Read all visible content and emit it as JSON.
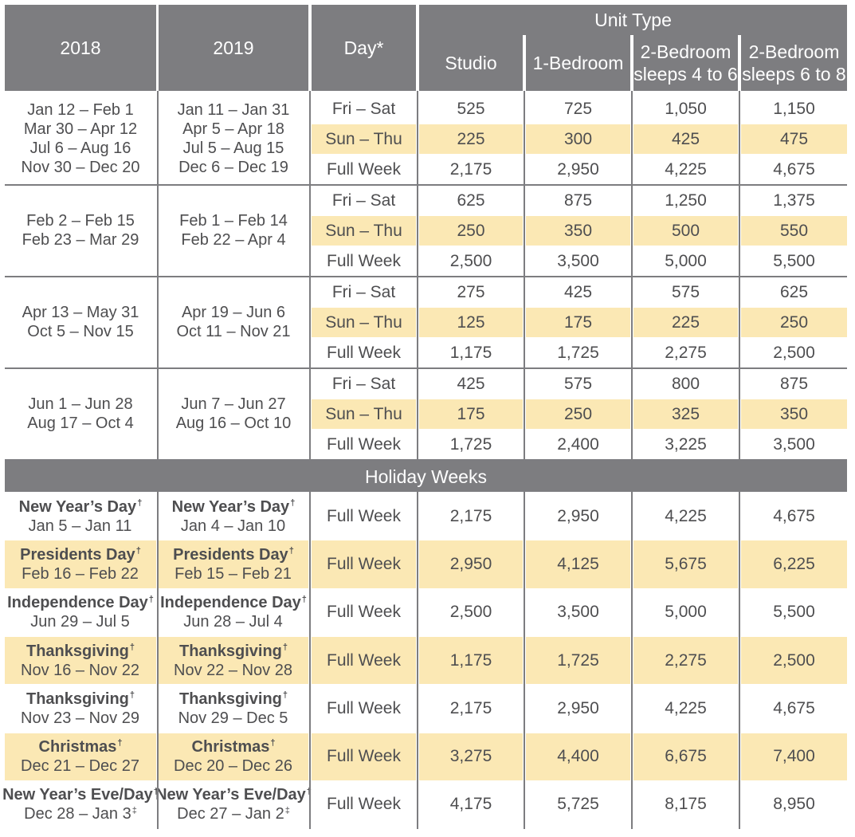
{
  "header": {
    "col_2018": "2018",
    "col_2019": "2019",
    "col_day": "Day*",
    "unit_type": "Unit Type",
    "studio": "Studio",
    "one_bedroom": "1-Bedroom",
    "two_bed_a_line1": "2-Bedroom",
    "two_bed_a_line2": "sleeps 4 to 6",
    "two_bed_b_line1": "2-Bedroom",
    "two_bed_b_line2": "sleeps 6 to 8"
  },
  "seasons": [
    {
      "dates_2018": [
        "Jan 12 – Feb 1",
        "Mar 30 – Apr 12",
        "Jul 6 – Aug 16",
        "Nov 30 – Dec 20"
      ],
      "dates_2019": [
        "Jan 11 – Jan 31",
        "Apr 5 – Apr 18",
        "Jul 5 – Aug 15",
        "Dec 6 – Dec 19"
      ],
      "rows": [
        {
          "day": "Fri – Sat",
          "values": [
            "525",
            "725",
            "1,050",
            "1,150"
          ]
        },
        {
          "day": "Sun – Thu",
          "values": [
            "225",
            "300",
            "425",
            "475"
          ]
        },
        {
          "day": "Full Week",
          "values": [
            "2,175",
            "2,950",
            "4,225",
            "4,675"
          ]
        }
      ]
    },
    {
      "dates_2018": [
        "Feb 2 – Feb 15",
        "Feb 23 – Mar 29"
      ],
      "dates_2019": [
        "Feb 1 – Feb 14",
        "Feb 22 – Apr 4"
      ],
      "rows": [
        {
          "day": "Fri – Sat",
          "values": [
            "625",
            "875",
            "1,250",
            "1,375"
          ]
        },
        {
          "day": "Sun – Thu",
          "values": [
            "250",
            "350",
            "500",
            "550"
          ]
        },
        {
          "day": "Full Week",
          "values": [
            "2,500",
            "3,500",
            "5,000",
            "5,500"
          ]
        }
      ]
    },
    {
      "dates_2018": [
        "Apr 13 – May 31",
        "Oct 5 – Nov 15"
      ],
      "dates_2019": [
        "Apr 19 – Jun 6",
        "Oct 11 – Nov 21"
      ],
      "rows": [
        {
          "day": "Fri – Sat",
          "values": [
            "275",
            "425",
            "575",
            "625"
          ]
        },
        {
          "day": "Sun – Thu",
          "values": [
            "125",
            "175",
            "225",
            "250"
          ]
        },
        {
          "day": "Full Week",
          "values": [
            "1,175",
            "1,725",
            "2,275",
            "2,500"
          ]
        }
      ]
    },
    {
      "dates_2018": [
        "Jun 1 – Jun 28",
        "Aug 17 – Oct 4"
      ],
      "dates_2019": [
        "Jun 7 – Jun 27",
        "Aug 16 – Oct 10"
      ],
      "rows": [
        {
          "day": "Fri – Sat",
          "values": [
            "425",
            "575",
            "800",
            "875"
          ]
        },
        {
          "day": "Sun – Thu",
          "values": [
            "175",
            "250",
            "325",
            "350"
          ]
        },
        {
          "day": "Full Week",
          "values": [
            "1,725",
            "2,400",
            "3,225",
            "3,500"
          ]
        }
      ]
    }
  ],
  "holiday_header": "Holiday Weeks",
  "holidays": [
    {
      "name_2018": "New Year’s Day",
      "mark_2018": "†",
      "dates_2018": "Jan 5 – Jan 11",
      "mark2_2018": "",
      "name_2019": "New Year’s Day",
      "mark_2019": "†",
      "dates_2019": "Jan 4 – Jan 10",
      "mark2_2019": "",
      "day": "Full Week",
      "values": [
        "2,175",
        "2,950",
        "4,225",
        "4,675"
      ]
    },
    {
      "name_2018": "Presidents Day",
      "mark_2018": "†",
      "dates_2018": "Feb 16 – Feb 22",
      "mark2_2018": "",
      "name_2019": "Presidents Day",
      "mark_2019": "†",
      "dates_2019": "Feb 15 – Feb 21",
      "mark2_2019": "",
      "day": "Full Week",
      "values": [
        "2,950",
        "4,125",
        "5,675",
        "6,225"
      ]
    },
    {
      "name_2018": "Independence Day",
      "mark_2018": "†",
      "dates_2018": "Jun 29 – Jul 5",
      "mark2_2018": "",
      "name_2019": "Independence Day",
      "mark_2019": "†",
      "dates_2019": "Jun 28 – Jul 4",
      "mark2_2019": "",
      "day": "Full Week",
      "values": [
        "2,500",
        "3,500",
        "5,000",
        "5,500"
      ]
    },
    {
      "name_2018": "Thanksgiving",
      "mark_2018": "†",
      "dates_2018": "Nov 16 – Nov 22",
      "mark2_2018": "",
      "name_2019": "Thanksgiving",
      "mark_2019": "†",
      "dates_2019": "Nov 22 – Nov 28",
      "mark2_2019": "",
      "day": "Full Week",
      "values": [
        "1,175",
        "1,725",
        "2,275",
        "2,500"
      ]
    },
    {
      "name_2018": "Thanksgiving",
      "mark_2018": "†",
      "dates_2018": "Nov 23 – Nov 29",
      "mark2_2018": "",
      "name_2019": "Thanksgiving",
      "mark_2019": "†",
      "dates_2019": "Nov 29 – Dec 5",
      "mark2_2019": "",
      "day": "Full Week",
      "values": [
        "2,175",
        "2,950",
        "4,225",
        "4,675"
      ]
    },
    {
      "name_2018": "Christmas",
      "mark_2018": "†",
      "dates_2018": "Dec 21 – Dec 27",
      "mark2_2018": "",
      "name_2019": "Christmas",
      "mark_2019": "†",
      "dates_2019": "Dec 20 – Dec 26",
      "mark2_2019": "",
      "day": "Full Week",
      "values": [
        "3,275",
        "4,400",
        "6,675",
        "7,400"
      ]
    },
    {
      "name_2018": "New Year’s Eve/Day",
      "mark_2018": "†",
      "dates_2018": "Dec 28 – Jan 3",
      "mark2_2018": "‡",
      "name_2019": "New Year’s Eve/Day",
      "mark_2019": "†",
      "dates_2019": "Dec 27 – Jan 2",
      "mark2_2019": "‡",
      "day": "Full Week",
      "values": [
        "4,175",
        "5,725",
        "8,175",
        "8,950"
      ]
    }
  ]
}
